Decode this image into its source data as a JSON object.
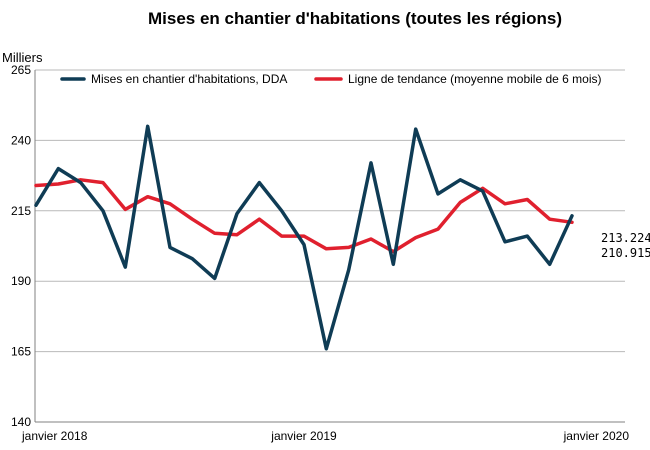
{
  "chart_data": {
    "type": "line",
    "title": "Mises  en chantier  d'habitations  (toutes les régions)",
    "ylabel": "Milliers",
    "xlabel": "",
    "ylim": [
      140,
      265
    ],
    "yticks": [
      140,
      165,
      190,
      215,
      240,
      265
    ],
    "grid": true,
    "legend_position": "top",
    "x_tick_labels": [
      {
        "index": 0,
        "label": "janvier 2018"
      },
      {
        "index": 12,
        "label": "janvier 2019"
      },
      {
        "index": 24,
        "label": "janvier 2020"
      }
    ],
    "series": [
      {
        "name": "Mises en chantier d'habitations, DDA",
        "color": "#0f3c55",
        "values": [
          217.0,
          230.0,
          225.0,
          215.0,
          195.0,
          245.0,
          202.0,
          198.0,
          191.0,
          214.0,
          225.0,
          215.0,
          203.0,
          166.0,
          194.0,
          232.0,
          196.0,
          244.0,
          221.0,
          226.0,
          222.0,
          204.0,
          206.0,
          196.0,
          213.224
        ]
      },
      {
        "name": "Ligne de tendance (moyenne mobile de 6 mois)",
        "color": "#e0202e",
        "values": [
          224.0,
          224.5,
          226.0,
          225.0,
          215.5,
          220.0,
          217.5,
          212.0,
          207.0,
          206.5,
          212.0,
          206.0,
          206.0,
          201.5,
          202.0,
          205.0,
          200.5,
          205.5,
          208.5,
          218.0,
          223.0,
          217.5,
          219.0,
          212.0,
          210.915
        ]
      }
    ],
    "end_labels": [
      "213.224",
      "210.915"
    ]
  }
}
